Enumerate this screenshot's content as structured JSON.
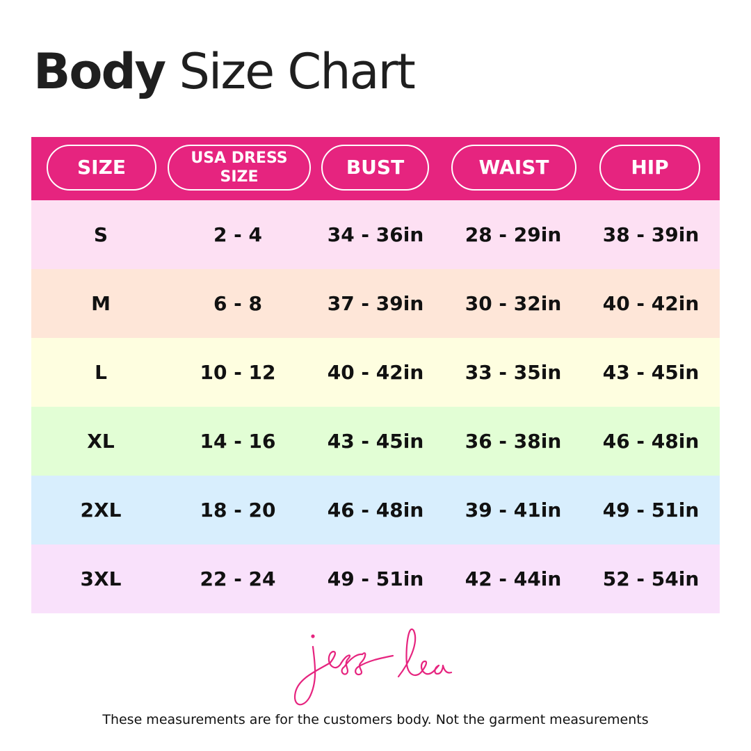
{
  "title": {
    "bold": "Body",
    "rest": "Size Chart"
  },
  "colors": {
    "accent": "#e6247f",
    "rows": [
      "#fde0f3",
      "#fee6d8",
      "#fefee0",
      "#e2fed5",
      "#d8eefd",
      "#f9e1fb"
    ]
  },
  "table": {
    "headers": [
      "SIZE",
      "USA DRESS SIZE",
      "BUST",
      "WAIST",
      "HIP"
    ],
    "rows": [
      [
        "S",
        "2 - 4",
        "34 - 36in",
        "28 - 29in",
        "38 - 39in"
      ],
      [
        "M",
        "6 - 8",
        "37 - 39in",
        "30 - 32in",
        "40 - 42in"
      ],
      [
        "L",
        "10 - 12",
        "40 - 42in",
        "33 - 35in",
        "43 - 45in"
      ],
      [
        "XL",
        "14 - 16",
        "43 - 45in",
        "36 - 38in",
        "46 - 48in"
      ],
      [
        "2XL",
        "18 - 20",
        "46 - 48in",
        "39 - 41in",
        "49 - 51in"
      ],
      [
        "3XL",
        "22 - 24",
        "49 - 51in",
        "42 - 44in",
        "52 - 54in"
      ]
    ]
  },
  "logo": {
    "text": "jess lea"
  },
  "footer_note": "These measurements are for the customers body. Not the garment measurements"
}
